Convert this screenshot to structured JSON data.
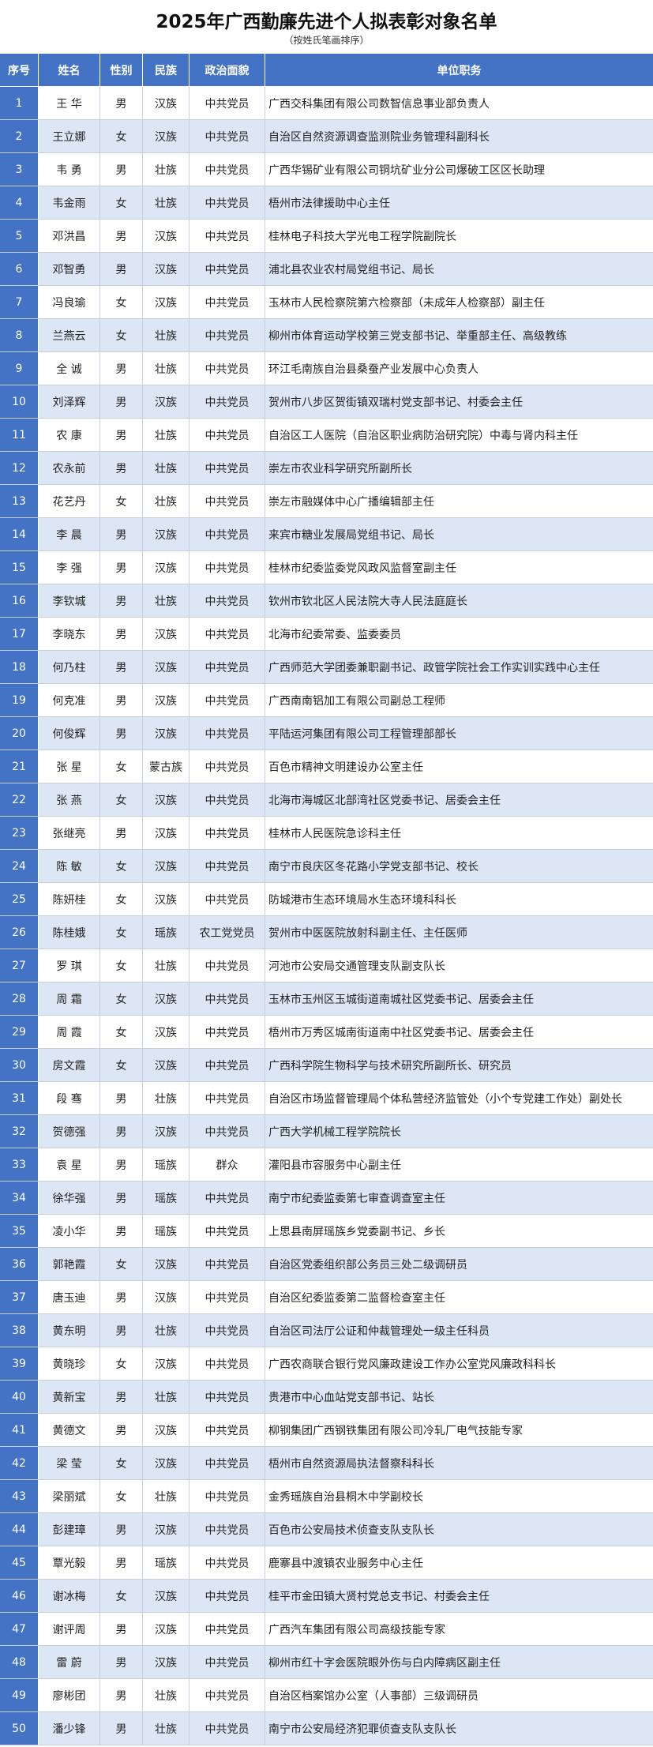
{
  "title": "2025年广西勤廉先进个人拟表彰对象名单",
  "subtitle": "（按姓氏笔画排序）",
  "table": {
    "headers": [
      "序号",
      "姓名",
      "性别",
      "民族",
      "政治面貌",
      "单位职务"
    ],
    "rows": [
      [
        1,
        "王 华",
        "男",
        "汉族",
        "中共党员",
        "广西交科集团有限公司数智信息事业部负责人"
      ],
      [
        2,
        "王立娜",
        "女",
        "汉族",
        "中共党员",
        "自治区自然资源调查监测院业务管理科副科长"
      ],
      [
        3,
        "韦 勇",
        "男",
        "壮族",
        "中共党员",
        "广西华锡矿业有限公司铜坑矿业分公司爆破工区区长助理"
      ],
      [
        4,
        "韦金雨",
        "女",
        "壮族",
        "中共党员",
        "梧州市法律援助中心主任"
      ],
      [
        5,
        "邓洪昌",
        "男",
        "汉族",
        "中共党员",
        "桂林电子科技大学光电工程学院副院长"
      ],
      [
        6,
        "邓智勇",
        "男",
        "汉族",
        "中共党员",
        "浦北县农业农村局党组书记、局长"
      ],
      [
        7,
        "冯良瑜",
        "女",
        "汉族",
        "中共党员",
        "玉林市人民检察院第六检察部（未成年人检察部）副主任"
      ],
      [
        8,
        "兰燕云",
        "女",
        "壮族",
        "中共党员",
        "柳州市体育运动学校第三党支部书记、举重部主任、高级教练"
      ],
      [
        9,
        "全 诚",
        "男",
        "壮族",
        "中共党员",
        "环江毛南族自治县桑蚕产业发展中心负责人"
      ],
      [
        10,
        "刘泽辉",
        "男",
        "汉族",
        "中共党员",
        "贺州市八步区贺街镇双瑞村党支部书记、村委会主任"
      ],
      [
        11,
        "农 康",
        "男",
        "壮族",
        "中共党员",
        "自治区工人医院（自治区职业病防治研究院）中毒与肾内科主任"
      ],
      [
        12,
        "农永前",
        "男",
        "壮族",
        "中共党员",
        "崇左市农业科学研究所副所长"
      ],
      [
        13,
        "花艺丹",
        "女",
        "壮族",
        "中共党员",
        "崇左市融媒体中心广播编辑部主任"
      ],
      [
        14,
        "李 晨",
        "男",
        "汉族",
        "中共党员",
        "来宾市糖业发展局党组书记、局长"
      ],
      [
        15,
        "李 强",
        "男",
        "汉族",
        "中共党员",
        "桂林市纪委监委党风政风监督室副主任"
      ],
      [
        16,
        "李钦城",
        "男",
        "壮族",
        "中共党员",
        "钦州市钦北区人民法院大寺人民法庭庭长"
      ],
      [
        17,
        "李晓东",
        "男",
        "汉族",
        "中共党员",
        "北海市纪委常委、监委委员"
      ],
      [
        18,
        "何乃柱",
        "男",
        "汉族",
        "中共党员",
        "广西师范大学团委兼职副书记、政管学院社会工作实训实践中心主任"
      ],
      [
        19,
        "何克准",
        "男",
        "汉族",
        "中共党员",
        "广西南南铝加工有限公司副总工程师"
      ],
      [
        20,
        "何俊辉",
        "男",
        "汉族",
        "中共党员",
        "平陆运河集团有限公司工程管理部部长"
      ],
      [
        21,
        "张 星",
        "女",
        "蒙古族",
        "中共党员",
        "百色市精神文明建设办公室主任"
      ],
      [
        22,
        "张 燕",
        "女",
        "汉族",
        "中共党员",
        "北海市海城区北部湾社区党委书记、居委会主任"
      ],
      [
        23,
        "张继亮",
        "男",
        "汉族",
        "中共党员",
        "桂林市人民医院急诊科主任"
      ],
      [
        24,
        "陈 敏",
        "女",
        "汉族",
        "中共党员",
        "南宁市良庆区冬花路小学党支部书记、校长"
      ],
      [
        25,
        "陈妍桂",
        "女",
        "汉族",
        "中共党员",
        "防城港市生态环境局水生态环境科科长"
      ],
      [
        26,
        "陈桂娥",
        "女",
        "瑶族",
        "农工党党员",
        "贺州市中医医院放射科副主任、主任医师"
      ],
      [
        27,
        "罗 琪",
        "女",
        "壮族",
        "中共党员",
        "河池市公安局交通管理支队副支队长"
      ],
      [
        28,
        "周 霜",
        "女",
        "汉族",
        "中共党员",
        "玉林市玉州区玉城街道南城社区党委书记、居委会主任"
      ],
      [
        29,
        "周 霞",
        "女",
        "汉族",
        "中共党员",
        "梧州市万秀区城南街道南中社区党委书记、居委会主任"
      ],
      [
        30,
        "房文霞",
        "女",
        "汉族",
        "中共党员",
        "广西科学院生物科学与技术研究所副所长、研究员"
      ],
      [
        31,
        "段 骞",
        "男",
        "壮族",
        "中共党员",
        "自治区市场监督管理局个体私营经济监管处（小个专党建工作处）副处长"
      ],
      [
        32,
        "贺德强",
        "男",
        "汉族",
        "中共党员",
        "广西大学机械工程学院院长"
      ],
      [
        33,
        "袁 星",
        "男",
        "瑶族",
        "群众",
        "灌阳县市容服务中心副主任"
      ],
      [
        34,
        "徐华强",
        "男",
        "瑶族",
        "中共党员",
        "南宁市纪委监委第七审查调查室主任"
      ],
      [
        35,
        "凌小华",
        "男",
        "瑶族",
        "中共党员",
        "上思县南屏瑶族乡党委副书记、乡长"
      ],
      [
        36,
        "郭艳霞",
        "女",
        "汉族",
        "中共党员",
        "自治区党委组织部公务员三处二级调研员"
      ],
      [
        37,
        "唐玉迪",
        "男",
        "汉族",
        "中共党员",
        "自治区纪委监委第二监督检查室主任"
      ],
      [
        38,
        "黄东明",
        "男",
        "壮族",
        "中共党员",
        "自治区司法厅公证和仲裁管理处一级主任科员"
      ],
      [
        39,
        "黄晓珍",
        "女",
        "汉族",
        "中共党员",
        "广西农商联合银行党风廉政建设工作办公室党风廉政科科长"
      ],
      [
        40,
        "黄新宝",
        "男",
        "壮族",
        "中共党员",
        "贵港市中心血站党支部书记、站长"
      ],
      [
        41,
        "黄德文",
        "男",
        "汉族",
        "中共党员",
        "柳钢集团广西钢铁集团有限公司冷轧厂电气技能专家"
      ],
      [
        42,
        "梁 莹",
        "女",
        "汉族",
        "中共党员",
        "梧州市自然资源局执法督察科科长"
      ],
      [
        43,
        "梁丽斌",
        "女",
        "壮族",
        "中共党员",
        "金秀瑶族自治县桐木中学副校长"
      ],
      [
        44,
        "彭建璋",
        "男",
        "汉族",
        "中共党员",
        "百色市公安局技术侦查支队支队长"
      ],
      [
        45,
        "覃光毅",
        "男",
        "瑶族",
        "中共党员",
        "鹿寨县中渡镇农业服务中心主任"
      ],
      [
        46,
        "谢冰梅",
        "女",
        "汉族",
        "中共党员",
        "桂平市金田镇大贤村党总支书记、村委会主任"
      ],
      [
        47,
        "谢评周",
        "男",
        "汉族",
        "中共党员",
        "广西汽车集团有限公司高级技能专家"
      ],
      [
        48,
        "雷 蔚",
        "男",
        "汉族",
        "中共党员",
        "柳州市红十字会医院眼外伤与白内障病区副主任"
      ],
      [
        49,
        "廖彬团",
        "男",
        "壮族",
        "中共党员",
        "自治区档案馆办公室（人事部）三级调研员"
      ],
      [
        50,
        "潘少锋",
        "男",
        "壮族",
        "中共党员",
        "南宁市公安局经济犯罪侦查支队支队长"
      ]
    ]
  }
}
